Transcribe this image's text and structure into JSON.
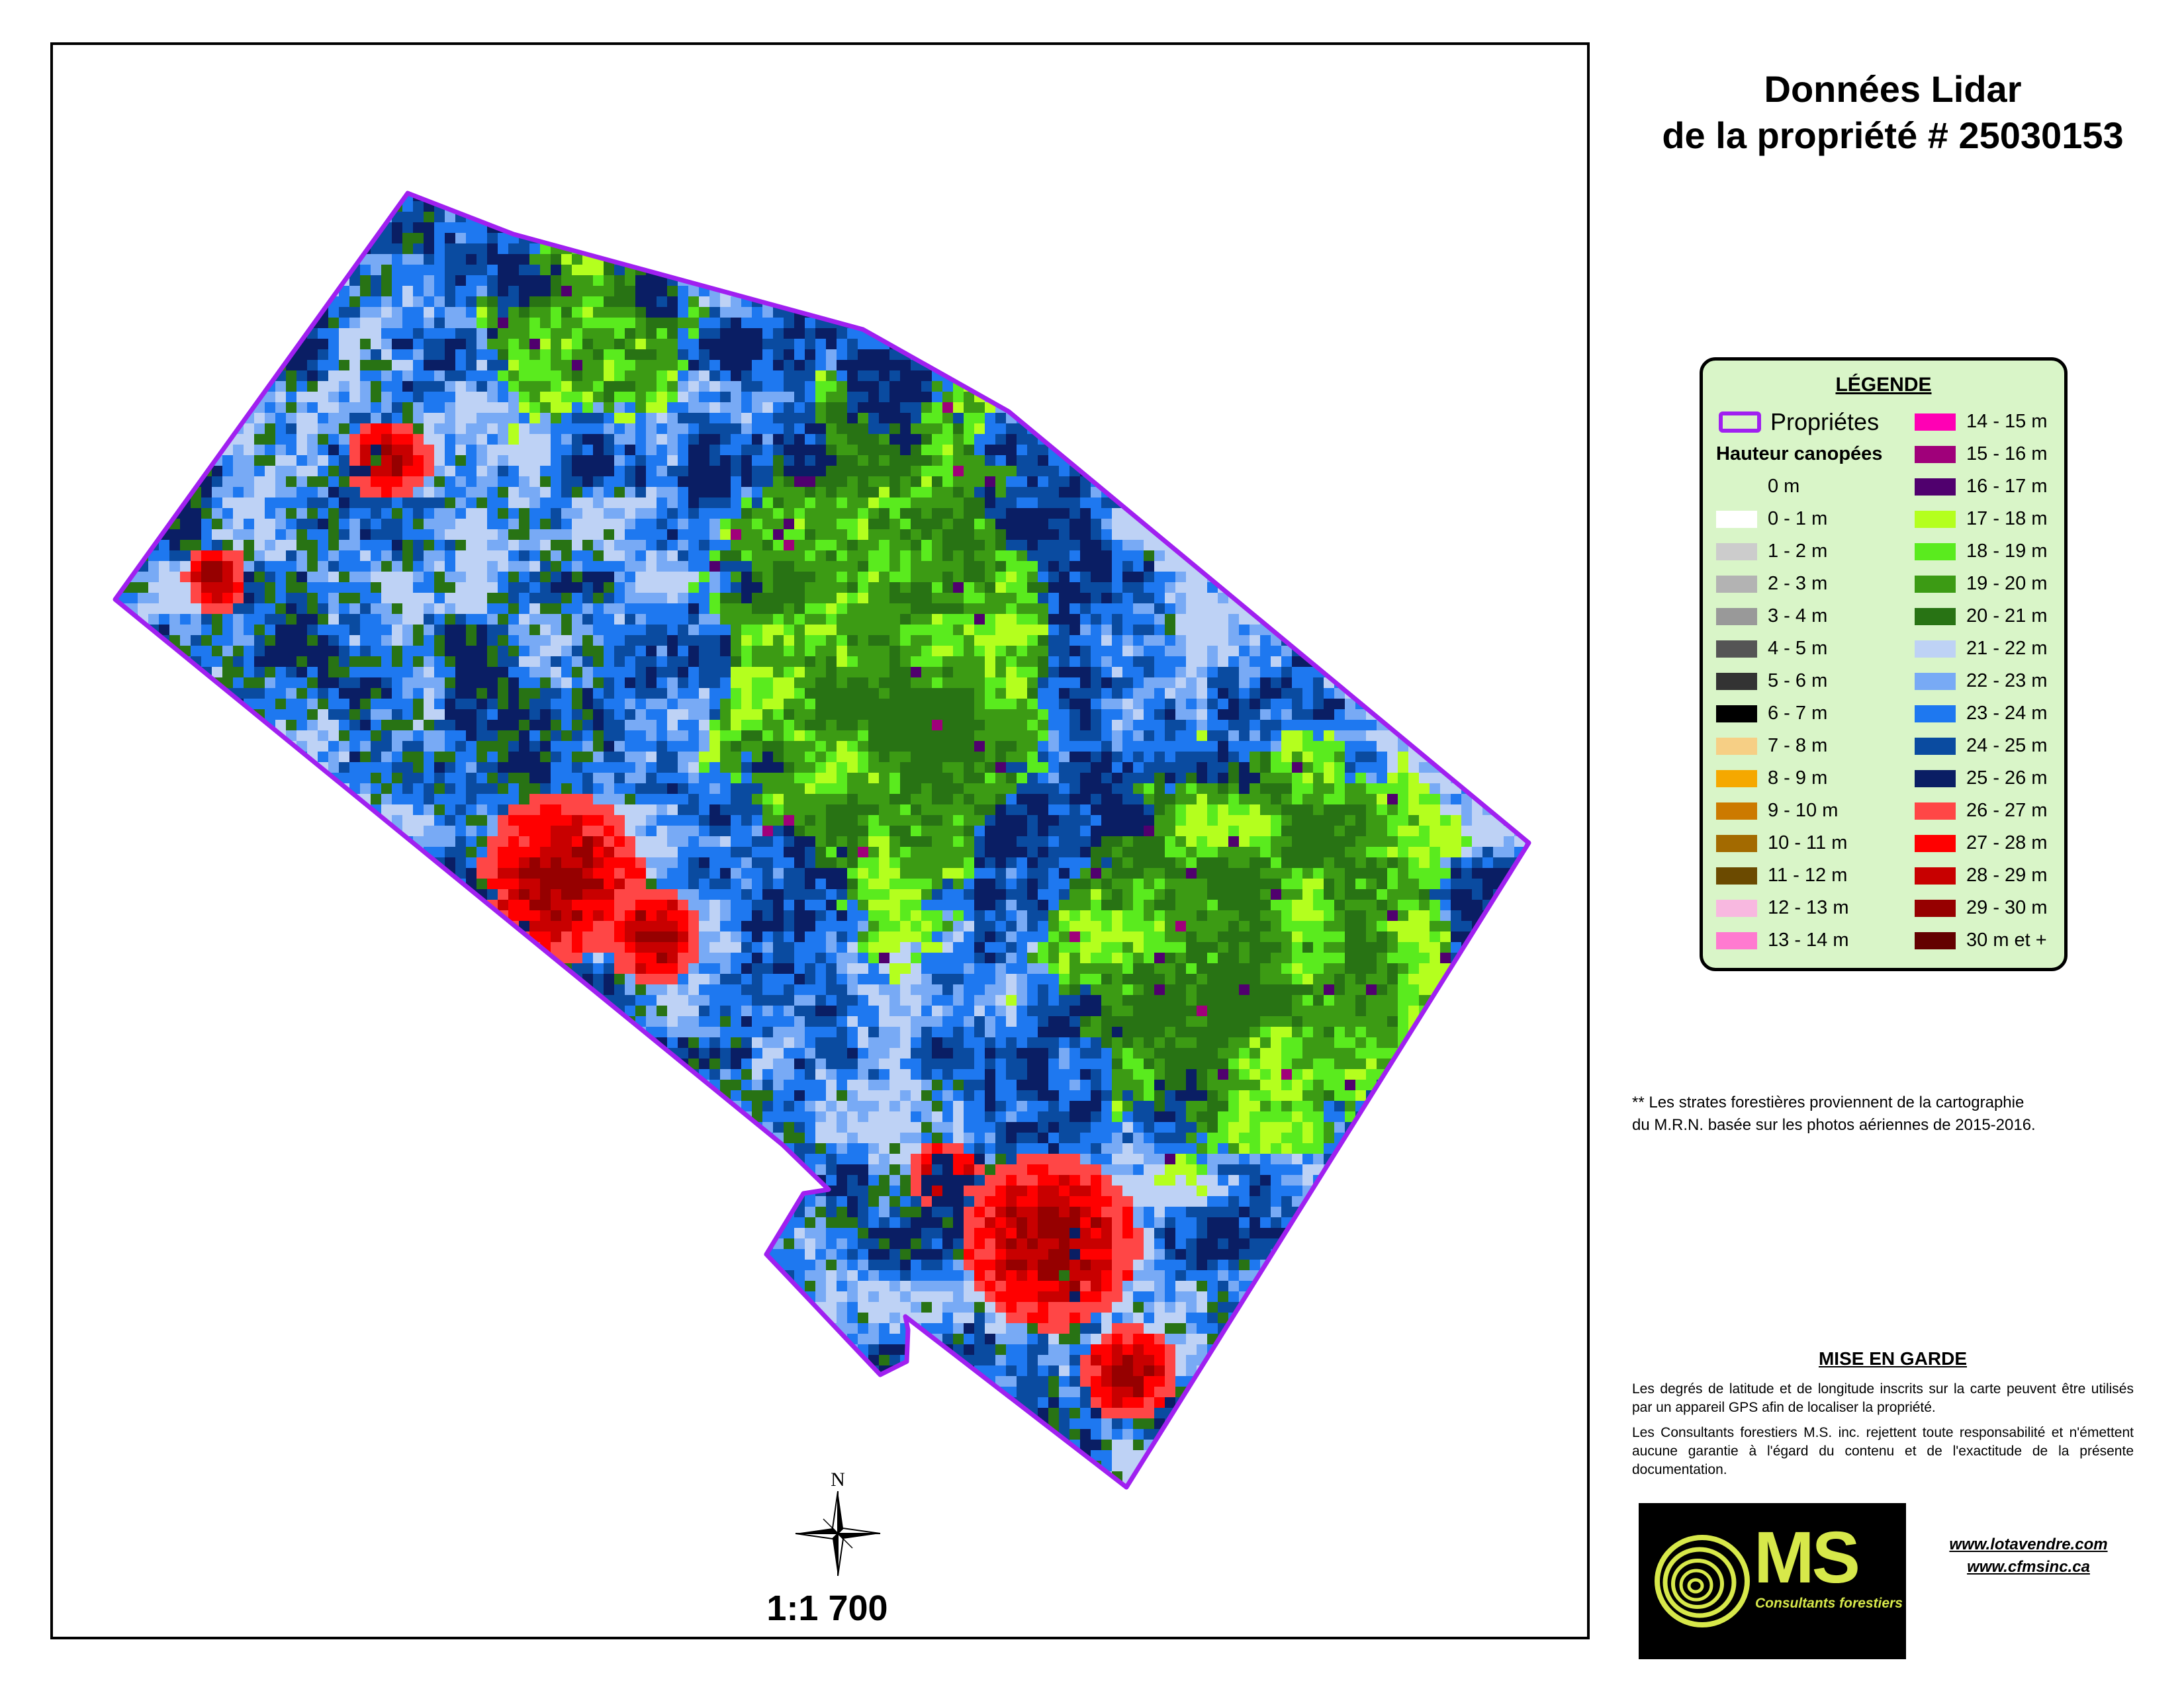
{
  "title": {
    "line1": "Données Lidar",
    "line2": "de la propriété # 25030153"
  },
  "map": {
    "scale": "1:1 700",
    "north_letter": "N",
    "icons": {
      "north_arrow": "compass-rose-icon"
    }
  },
  "legend": {
    "title": "LÉGENDE",
    "property_label": "Propriétes",
    "property_color": "#a020f0",
    "canopy_title": "Hauteur canopées",
    "classes_left": [
      {
        "label": "0 m",
        "color": "none"
      },
      {
        "label": "0 - 1 m",
        "color": "#ffffff"
      },
      {
        "label": "1 - 2 m",
        "color": "#cccccc"
      },
      {
        "label": "2 - 3 m",
        "color": "#b3b3b3"
      },
      {
        "label": "3 - 4 m",
        "color": "#999999"
      },
      {
        "label": "4 - 5 m",
        "color": "#555555"
      },
      {
        "label": "5 - 6 m",
        "color": "#333333"
      },
      {
        "label": "6 - 7 m",
        "color": "#000000"
      },
      {
        "label": "7 - 8 m",
        "color": "#f6cf85"
      },
      {
        "label": "8 - 9 m",
        "color": "#f5a800"
      },
      {
        "label": "9 - 10 m",
        "color": "#cc7a00"
      },
      {
        "label": "10 - 11 m",
        "color": "#a36a00"
      },
      {
        "label": "11 - 12 m",
        "color": "#6b4a00"
      },
      {
        "label": "12 - 13 m",
        "color": "#f8b8e0"
      },
      {
        "label": "13 - 14 m",
        "color": "#ff7ad0"
      }
    ],
    "classes_right": [
      {
        "label": "14 - 15 m",
        "color": "#ff00b4"
      },
      {
        "label": "15 - 16 m",
        "color": "#a0007a"
      },
      {
        "label": "16 - 17 m",
        "color": "#50006e"
      },
      {
        "label": "17 - 18 m",
        "color": "#b4ff1e"
      },
      {
        "label": "18 - 19 m",
        "color": "#5aeb1e"
      },
      {
        "label": "19 - 20 m",
        "color": "#3c9b14"
      },
      {
        "label": "20 - 21 m",
        "color": "#287314"
      },
      {
        "label": "21 - 22 m",
        "color": "#bed2f5"
      },
      {
        "label": "22 - 23 m",
        "color": "#78aaf5"
      },
      {
        "label": "23 - 24 m",
        "color": "#1e78f0"
      },
      {
        "label": "24 - 25 m",
        "color": "#0a4ba0"
      },
      {
        "label": "25 - 26 m",
        "color": "#0a1e64"
      },
      {
        "label": "26 - 27 m",
        "color": "#ff4646"
      },
      {
        "label": "27 - 28 m",
        "color": "#ff0000"
      },
      {
        "label": "28 - 29 m",
        "color": "#c80000"
      },
      {
        "label": "29 - 30 m",
        "color": "#960000"
      },
      {
        "label": "30 m et +",
        "color": "#640000"
      }
    ]
  },
  "note": {
    "line1": "** Les strates forestières proviennent de la cartographie",
    "line2": "du M.R.N.  basée sur les photos aériennes  de 2015-2016."
  },
  "warning": {
    "title": "MISE EN GARDE",
    "p1": "Les degrés de latitude et de longitude inscrits sur la carte peuvent être utilisés par un appareil GPS afin de localiser la propriété.",
    "p2": "Les Consultants forestiers M.S. inc. rejettent toute responsabilité et n'émettent aucune garantie à l'égard du contenu et de l'exactitude de la présente documentation."
  },
  "logo": {
    "text": "MS",
    "subtitle": "Consultants forestiers",
    "color": "#d7e84a",
    "icon": "tree-rings-icon"
  },
  "links": {
    "url1": "www.lotavendre.com",
    "url2": "www.cfmsinc.ca"
  }
}
